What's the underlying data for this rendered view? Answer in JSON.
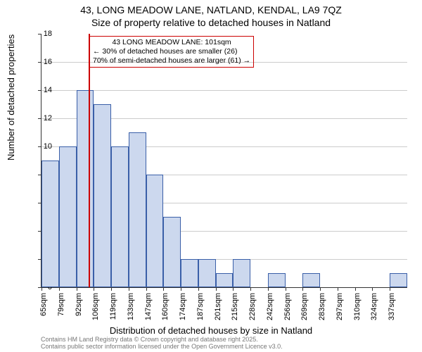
{
  "chart": {
    "type": "histogram",
    "title_line1": "43, LONG MEADOW LANE, NATLAND, KENDAL, LA9 7QZ",
    "title_line2": "Size of property relative to detached houses in Natland",
    "title_fontsize": 14,
    "ylabel": "Number of detached properties",
    "xlabel": "Distribution of detached houses by size in Natland",
    "axis_label_fontsize": 13,
    "tick_fontsize": 11,
    "ylim": [
      0,
      18
    ],
    "ytick_step": 2,
    "x_categories": [
      "65sqm",
      "79sqm",
      "92sqm",
      "106sqm",
      "119sqm",
      "133sqm",
      "147sqm",
      "160sqm",
      "174sqm",
      "187sqm",
      "201sqm",
      "215sqm",
      "228sqm",
      "242sqm",
      "256sqm",
      "269sqm",
      "283sqm",
      "297sqm",
      "310sqm",
      "324sqm",
      "337sqm"
    ],
    "values": [
      9,
      10,
      14,
      13,
      10,
      11,
      8,
      5,
      2,
      2,
      1,
      2,
      0,
      1,
      0,
      1,
      0,
      0,
      0,
      0,
      1
    ],
    "bar_fill": "#ccd8ee",
    "bar_border": "#3a5fa8",
    "background_color": "#ffffff",
    "grid_color": "#CCCCCC",
    "ref_line": {
      "position_index": 2.7,
      "color": "#cc0000"
    },
    "annotation": {
      "line1": "43 LONG MEADOW LANE: 101sqm",
      "line2": "← 30% of detached houses are smaller (26)",
      "line3": "70% of semi-detached houses are larger (61) →",
      "border_color": "#cc0000",
      "fontsize": 10.5
    },
    "footer_line1": "Contains HM Land Registry data © Crown copyright and database right 2025.",
    "footer_line2": "Contains public sector information licensed under the Open Government Licence v3.0.",
    "footer_color": "#777777",
    "footer_fontsize": 9
  }
}
